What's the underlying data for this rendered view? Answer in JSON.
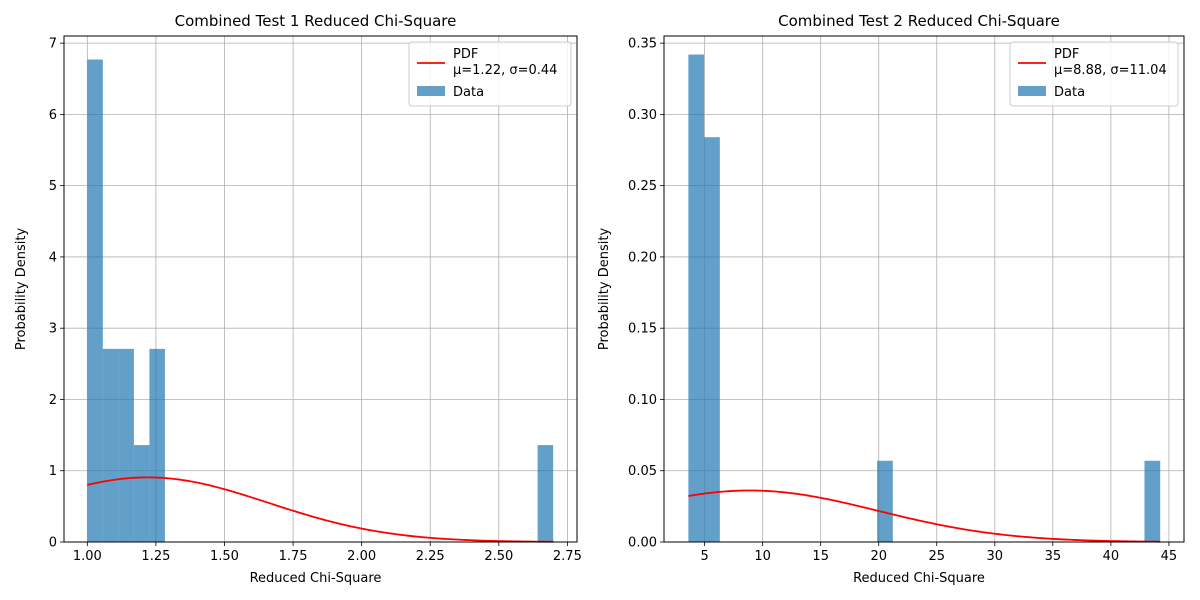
{
  "chart_data": [
    {
      "type": "bar",
      "title": "Combined Test 1 Reduced Chi-Square",
      "xlabel": "Reduced Chi-Square",
      "ylabel": "Probability Density",
      "xlim": [
        0.915,
        2.785
      ],
      "ylim": [
        0,
        7.1
      ],
      "xticks": [
        1.0,
        1.25,
        1.5,
        1.75,
        2.0,
        2.25,
        2.5,
        2.75
      ],
      "xtick_labels": [
        "1.00",
        "1.25",
        "1.50",
        "1.75",
        "2.00",
        "2.25",
        "2.50",
        "2.75"
      ],
      "yticks": [
        0,
        1,
        2,
        3,
        4,
        5,
        6,
        7
      ],
      "ytick_labels": [
        "0",
        "1",
        "2",
        "3",
        "4",
        "5",
        "6",
        "7"
      ],
      "grid": true,
      "legend_position": "top-right",
      "bar_color": "#1f77b4",
      "bar_opacity": 0.7,
      "line_color": "#ff0000",
      "bins": {
        "start": 1.0,
        "width": 0.0566,
        "values": [
          6.77,
          2.71,
          2.71,
          1.36,
          2.71,
          0,
          0,
          0,
          0,
          0,
          0,
          0,
          0,
          0,
          0,
          0,
          0,
          0,
          0,
          0,
          0,
          0,
          0,
          0,
          0,
          0,
          0,
          0,
          0,
          1.36
        ]
      },
      "pdf": {
        "mu": 1.22,
        "sigma": 0.44,
        "x_range": [
          1.0,
          2.7
        ]
      },
      "legend": [
        {
          "kind": "line",
          "label": "PDF\nμ=1.22, σ=0.44"
        },
        {
          "kind": "patch",
          "label": "Data"
        }
      ]
    },
    {
      "type": "bar",
      "title": "Combined Test 2 Reduced Chi-Square",
      "xlabel": "Reduced Chi-Square",
      "ylabel": "Probability Density",
      "xlim": [
        1.5,
        46.3
      ],
      "ylim": [
        0,
        0.355
      ],
      "xticks": [
        5,
        10,
        15,
        20,
        25,
        30,
        35,
        40,
        45
      ],
      "xtick_labels": [
        "5",
        "10",
        "15",
        "20",
        "25",
        "30",
        "35",
        "40",
        "45"
      ],
      "yticks": [
        0,
        0.05,
        0.1,
        0.15,
        0.2,
        0.25,
        0.3,
        0.35
      ],
      "ytick_labels": [
        "0.00",
        "0.05",
        "0.10",
        "0.15",
        "0.20",
        "0.25",
        "0.30",
        "0.35"
      ],
      "grid": true,
      "legend_position": "top-right",
      "bar_color": "#1f77b4",
      "bar_opacity": 0.7,
      "line_color": "#ff0000",
      "bins": {
        "start": 3.6,
        "width": 1.355,
        "values": [
          0.342,
          0.284,
          0,
          0,
          0,
          0,
          0,
          0,
          0,
          0,
          0,
          0,
          0.057,
          0,
          0,
          0,
          0,
          0,
          0,
          0,
          0,
          0,
          0,
          0,
          0,
          0,
          0,
          0,
          0,
          0.057
        ]
      },
      "pdf": {
        "mu": 8.88,
        "sigma": 11.04,
        "x_range": [
          3.6,
          44.25
        ]
      },
      "legend": [
        {
          "kind": "line",
          "label": "PDF\nμ=8.88, σ=11.04"
        },
        {
          "kind": "patch",
          "label": "Data"
        }
      ]
    }
  ]
}
